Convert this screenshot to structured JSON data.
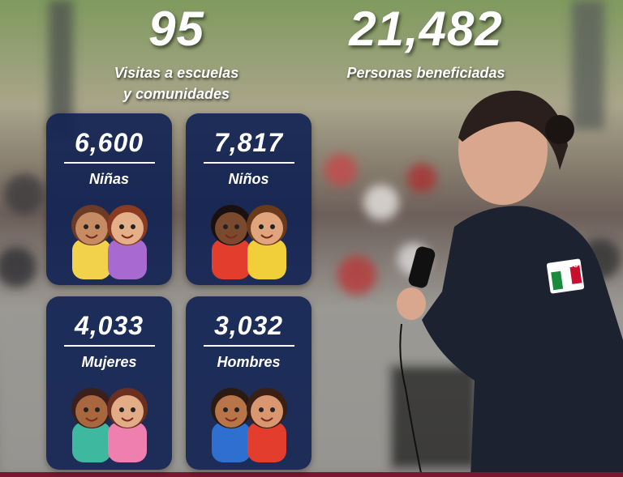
{
  "stats": [
    {
      "number": "95",
      "label": [
        "Visitas a escuelas",
        "y comunidades"
      ]
    },
    {
      "number": "21,482",
      "label": [
        "Personas beneficiadas"
      ]
    }
  ],
  "cards": [
    {
      "number": "6,600",
      "label": "Niñas"
    },
    {
      "number": "7,817",
      "label": "Niños"
    },
    {
      "number": "4,033",
      "label": "Mujeres"
    },
    {
      "number": "3,032",
      "label": "Hombres"
    }
  ],
  "badge": "MEXICO"
}
